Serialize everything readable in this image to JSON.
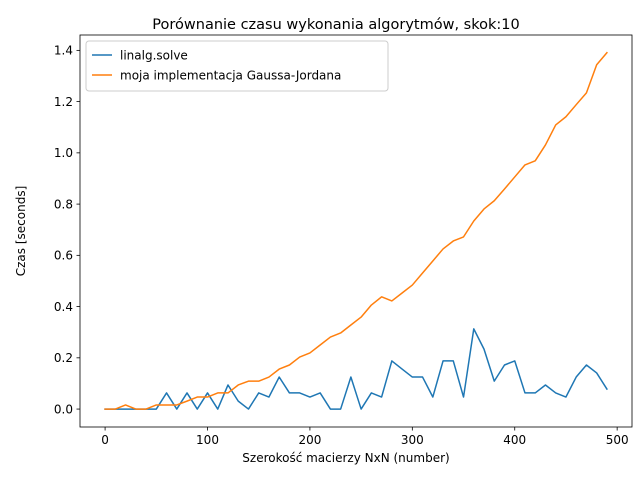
{
  "chart_data": {
    "type": "line",
    "title": "Porównanie czasu wykonania algorytmów, skok:10",
    "xlabel": "Szerokość macierzy NxN (number)",
    "ylabel": "Czas [seconds]",
    "xlim": [
      -24.5,
      514.5
    ],
    "ylim": [
      -0.07,
      1.46
    ],
    "xticks": [
      0,
      100,
      200,
      300,
      400,
      500
    ],
    "yticks": [
      0.0,
      0.2,
      0.4,
      0.6,
      0.8,
      1.0,
      1.2,
      1.4
    ],
    "legend_position": "top-left",
    "grid": false,
    "x": [
      0,
      10,
      20,
      30,
      40,
      50,
      60,
      70,
      80,
      90,
      100,
      110,
      120,
      130,
      140,
      150,
      160,
      170,
      180,
      190,
      200,
      210,
      220,
      230,
      240,
      250,
      260,
      270,
      280,
      290,
      300,
      310,
      320,
      330,
      340,
      350,
      360,
      370,
      380,
      390,
      400,
      410,
      420,
      430,
      440,
      450,
      460,
      470,
      480,
      490
    ],
    "series": [
      {
        "name": "linalg.solve",
        "color": "#1f77b4",
        "values": [
          0.0,
          0.0,
          0.0,
          0.0,
          0.0,
          0.0,
          0.063,
          0.0,
          0.063,
          0.0,
          0.063,
          0.0,
          0.094,
          0.031,
          0.0,
          0.063,
          0.047,
          0.125,
          0.063,
          0.063,
          0.047,
          0.063,
          0.0,
          0.0,
          0.125,
          0.0,
          0.063,
          0.047,
          0.188,
          0.156,
          0.125,
          0.125,
          0.047,
          0.188,
          0.188,
          0.047,
          0.313,
          0.234,
          0.109,
          0.172,
          0.188,
          0.063,
          0.063,
          0.094,
          0.063,
          0.047,
          0.125,
          0.172,
          0.141,
          0.078
        ]
      },
      {
        "name": "moja implementacja Gaussa-Jordana",
        "color": "#ff7f0e",
        "values": [
          0.0,
          0.0,
          0.016,
          0.0,
          0.0,
          0.016,
          0.016,
          0.016,
          0.031,
          0.047,
          0.047,
          0.063,
          0.063,
          0.094,
          0.109,
          0.109,
          0.125,
          0.156,
          0.172,
          0.203,
          0.219,
          0.25,
          0.281,
          0.297,
          0.328,
          0.359,
          0.406,
          0.438,
          0.422,
          0.453,
          0.484,
          0.531,
          0.578,
          0.625,
          0.656,
          0.672,
          0.734,
          0.781,
          0.813,
          0.859,
          0.906,
          0.953,
          0.969,
          1.031,
          1.109,
          1.141,
          1.188,
          1.234,
          1.344,
          1.391
        ]
      }
    ]
  }
}
